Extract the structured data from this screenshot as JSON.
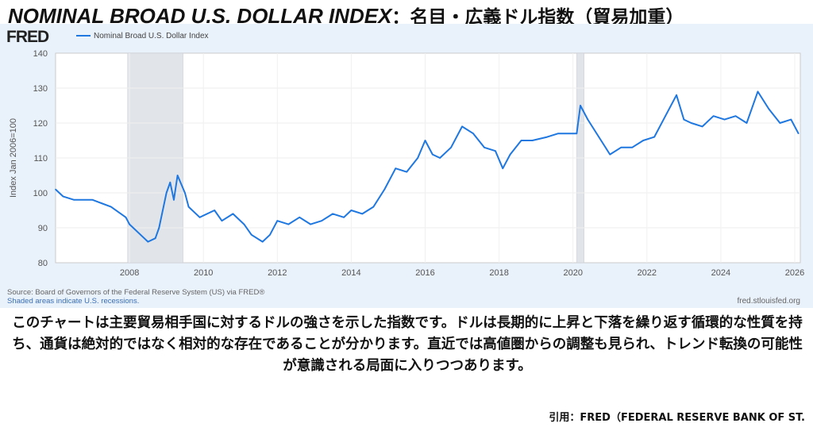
{
  "title": {
    "en": "NOMINAL BROAD U.S. DOLLAR INDEX",
    "ja": "：名目・広義ドル指数（貿易加重）"
  },
  "fred": {
    "logo": "FRED",
    "legend": "Nominal Broad U.S. Dollar Index",
    "source": "Source: Board of Governors of the Federal Reserve System (US) via FRED®",
    "recession_note": "Shaded areas indicate U.S. recessions.",
    "site": "fred.stlouisfed.org"
  },
  "caption": "このチャートは主要貿易相手国に対するドルの強さを示した指数です。ドルは長期的に上昇と下落を繰り返す循環的な性質を持ち、通貨は絶対的ではなく相対的な存在であることが分かります。直近では高値圏からの調整も見られ、トレンド転換の可能性が意識される局面に入りつつあります。",
  "citation": "引用：FRED（FEDERAL RESERVE BANK OF ST.",
  "chart_data": {
    "type": "line",
    "title": "Nominal Broad U.S. Dollar Index",
    "xlabel": "",
    "ylabel": "Index Jan 2006=100",
    "xlim": [
      2006,
      2026.15
    ],
    "ylim": [
      80,
      140
    ],
    "xticks": [
      2008,
      2010,
      2012,
      2014,
      2016,
      2018,
      2020,
      2022,
      2024,
      2026
    ],
    "yticks": [
      80,
      90,
      100,
      110,
      120,
      130,
      140
    ],
    "recessions": [
      [
        2007.95,
        2009.45
      ],
      [
        2020.1,
        2020.3
      ]
    ],
    "color": "#1f77e0",
    "x": [
      2006.0,
      2006.2,
      2006.5,
      2007.0,
      2007.5,
      2007.9,
      2008.0,
      2008.3,
      2008.5,
      2008.7,
      2008.8,
      2009.0,
      2009.1,
      2009.2,
      2009.3,
      2009.5,
      2009.6,
      2009.9,
      2010.3,
      2010.5,
      2010.8,
      2011.1,
      2011.3,
      2011.6,
      2011.8,
      2012.0,
      2012.3,
      2012.6,
      2012.9,
      2013.2,
      2013.5,
      2013.8,
      2014.0,
      2014.3,
      2014.6,
      2014.9,
      2015.2,
      2015.5,
      2015.8,
      2016.0,
      2016.2,
      2016.4,
      2016.7,
      2017.0,
      2017.3,
      2017.6,
      2017.9,
      2018.1,
      2018.3,
      2018.6,
      2018.9,
      2019.3,
      2019.6,
      2019.9,
      2020.1,
      2020.2,
      2020.4,
      2020.7,
      2021.0,
      2021.3,
      2021.6,
      2021.9,
      2022.2,
      2022.5,
      2022.8,
      2023.0,
      2023.2,
      2023.5,
      2023.8,
      2024.1,
      2024.4,
      2024.7,
      2024.9,
      2025.0,
      2025.3,
      2025.6,
      2025.9,
      2026.1
    ],
    "y": [
      101,
      99,
      98,
      98,
      96,
      93,
      91,
      88,
      86,
      87,
      90,
      100,
      103,
      98,
      105,
      100,
      96,
      93,
      95,
      92,
      94,
      91,
      88,
      86,
      88,
      92,
      91,
      93,
      91,
      92,
      94,
      93,
      95,
      94,
      96,
      101,
      107,
      106,
      110,
      115,
      111,
      110,
      113,
      119,
      117,
      113,
      112,
      107,
      111,
      115,
      115,
      116,
      117,
      117,
      117,
      125,
      121,
      116,
      111,
      113,
      113,
      115,
      116,
      122,
      128,
      121,
      120,
      119,
      122,
      121,
      122,
      120,
      126,
      129,
      124,
      120,
      121,
      117
    ]
  }
}
